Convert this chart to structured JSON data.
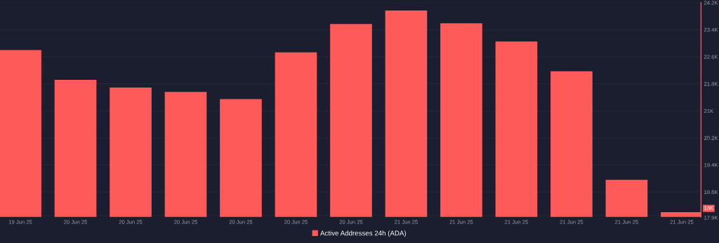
{
  "chart_data": {
    "type": "bar",
    "categories": [
      "19 Jun 25",
      "20 Jun 25",
      "20 Jun 25",
      "20 Jun 25",
      "20 Jun 25",
      "20 Jun 25",
      "20 Jun 25",
      "21 Jun 25",
      "21 Jun 25",
      "21 Jun 25",
      "21 Jun 25",
      "21 Jun 25",
      "21 Jun 25"
    ],
    "series": [
      {
        "name": "Active Addresses 24h (ADA)",
        "color": "#ff5a5a",
        "values": [
          22800,
          21920,
          21690,
          21560,
          21350,
          22730,
          23570,
          23970,
          23590,
          23050,
          22170,
          18960,
          18000
        ]
      }
    ],
    "ylim": [
      17860,
      24200
    ],
    "yticks": [
      {
        "value": 17900,
        "label": "17.9K"
      },
      {
        "value": 18600,
        "label": "18.6K"
      },
      {
        "value": 19400,
        "label": "19.4K"
      },
      {
        "value": 20200,
        "label": "20.2K"
      },
      {
        "value": 21000,
        "label": "21K"
      },
      {
        "value": 21800,
        "label": "21.8K"
      },
      {
        "value": 22600,
        "label": "22.6K"
      },
      {
        "value": 23400,
        "label": "23.4K"
      },
      {
        "value": 24200,
        "label": "24.2K"
      }
    ],
    "annotations": [
      "18K"
    ],
    "grid": "y",
    "legend": "bottom"
  }
}
